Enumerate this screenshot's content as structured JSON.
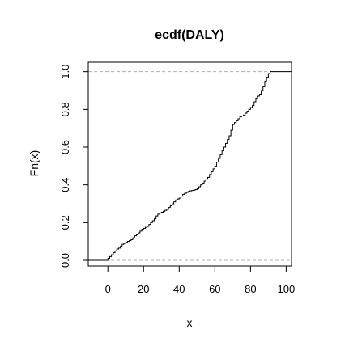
{
  "chart_data": {
    "type": "line",
    "title": "ecdf(DALY)",
    "xlabel": "x",
    "ylabel": "Fn(x)",
    "xlim": [
      -11,
      103
    ],
    "ylim": [
      -0.03,
      1.05
    ],
    "xticks": [
      0,
      20,
      40,
      60,
      80,
      100
    ],
    "yticks": [
      0.0,
      0.2,
      0.4,
      0.6,
      0.8,
      1.0
    ],
    "xtick_labels": [
      "0",
      "20",
      "40",
      "60",
      "80",
      "100"
    ],
    "ytick_labels": [
      "0.0",
      "0.2",
      "0.4",
      "0.6",
      "0.8",
      "1.0"
    ],
    "reference_lines": [
      0,
      1
    ],
    "series": [
      {
        "x": [
          0,
          1,
          2,
          3,
          4,
          5,
          6,
          7,
          8,
          9,
          10,
          11,
          12,
          13,
          14,
          15,
          16,
          17,
          18,
          19,
          20,
          21,
          22,
          23,
          24,
          25,
          26,
          27,
          28,
          29,
          30,
          31,
          32,
          33,
          34,
          35,
          36,
          37,
          38,
          39,
          40,
          41,
          42,
          43,
          44,
          45,
          46,
          47,
          48,
          49,
          50,
          51,
          52,
          53,
          54,
          55,
          56,
          57,
          58,
          59,
          60,
          61,
          62,
          63,
          64,
          65,
          66,
          67,
          68,
          69,
          70,
          71,
          72,
          73,
          74,
          75,
          76,
          77,
          78,
          79,
          80,
          81,
          82,
          83,
          84,
          85,
          86,
          87,
          88,
          89,
          90,
          91
        ],
        "y": [
          0.01,
          0.02,
          0.03,
          0.04,
          0.05,
          0.06,
          0.065,
          0.075,
          0.085,
          0.09,
          0.095,
          0.1,
          0.105,
          0.11,
          0.12,
          0.13,
          0.135,
          0.145,
          0.155,
          0.165,
          0.17,
          0.175,
          0.18,
          0.19,
          0.2,
          0.21,
          0.22,
          0.235,
          0.245,
          0.25,
          0.255,
          0.26,
          0.265,
          0.27,
          0.28,
          0.29,
          0.3,
          0.31,
          0.32,
          0.325,
          0.33,
          0.34,
          0.35,
          0.355,
          0.36,
          0.365,
          0.368,
          0.37,
          0.372,
          0.375,
          0.38,
          0.39,
          0.4,
          0.41,
          0.42,
          0.43,
          0.44,
          0.455,
          0.47,
          0.485,
          0.5,
          0.52,
          0.54,
          0.56,
          0.58,
          0.6,
          0.62,
          0.64,
          0.66,
          0.69,
          0.72,
          0.73,
          0.74,
          0.75,
          0.76,
          0.765,
          0.77,
          0.78,
          0.79,
          0.8,
          0.81,
          0.82,
          0.84,
          0.86,
          0.87,
          0.88,
          0.9,
          0.92,
          0.95,
          0.97,
          0.99,
          1.0
        ]
      }
    ]
  }
}
